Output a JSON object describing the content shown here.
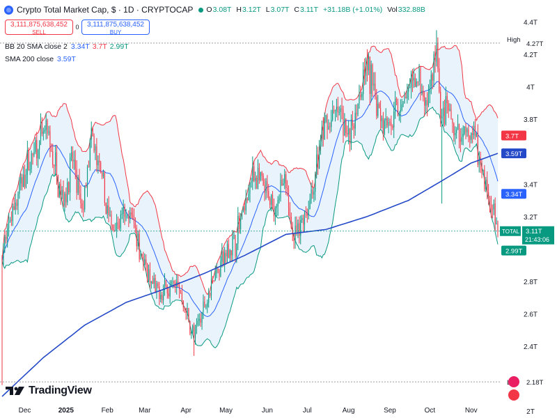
{
  "header": {
    "title": "Crypto Total Market Cap, $ · 1D · CRYPTOCAP",
    "ohlc": [
      {
        "key": "O",
        "value": "3.08T"
      },
      {
        "key": "H",
        "value": "3.12T"
      },
      {
        "key": "L",
        "value": "3.07T"
      },
      {
        "key": "C",
        "value": "3.11T"
      }
    ],
    "change": "+31.18B (+1.01%)",
    "volume_label": "Vol",
    "volume": "332.88B"
  },
  "trade": {
    "sell_price": "3,111,875,638,452",
    "sell_label": "SELL",
    "spread": "0",
    "buy_price": "3,111,875,638,452",
    "buy_label": "BUY"
  },
  "indicators": {
    "bb_name": "BB 20 SMA close 2",
    "bb_basis": "3.34T",
    "bb_upper": "3.7T",
    "bb_lower": "2.99T",
    "sma_name": "SMA 200 close",
    "sma_value": "3.59T"
  },
  "brand": {
    "name": "TradingView"
  },
  "colors": {
    "up": "#089981",
    "down": "#f23645",
    "bb_band": "#f23645",
    "bb_lower": "#089981",
    "bb_basis": "#2962ff",
    "bb_fill": "#e3f0fb",
    "sma": "#2449c8",
    "accent": "#2962ff"
  },
  "chart_data": {
    "type": "candlestick",
    "title": "Crypto Total Market Cap, $ · 1D · CRYPTOCAP",
    "y_unit": "T",
    "ylim": [
      2.0,
      4.45
    ],
    "y_ticks": [
      {
        "value": 4.4,
        "label": "4.4T"
      },
      {
        "value": 4.2,
        "label": "4.2T"
      },
      {
        "value": 4.0,
        "label": "4T"
      },
      {
        "value": 3.8,
        "label": "3.8T"
      },
      {
        "value": 3.4,
        "label": "3.4T"
      },
      {
        "value": 3.2,
        "label": "3.2T"
      },
      {
        "value": 2.8,
        "label": "2.8T"
      },
      {
        "value": 2.6,
        "label": "2.6T"
      },
      {
        "value": 2.4,
        "label": "2.4T"
      },
      {
        "value": 2.0,
        "label": "2T"
      }
    ],
    "x_start": "2024-11-14",
    "x_end": "2025-11-21",
    "x_ticks": [
      {
        "date": "2024-12-01",
        "label": "Dec",
        "bold": false
      },
      {
        "date": "2025-01-01",
        "label": "2025",
        "bold": true
      },
      {
        "date": "2025-02-01",
        "label": "Feb",
        "bold": false
      },
      {
        "date": "2025-03-01",
        "label": "Mar",
        "bold": false
      },
      {
        "date": "2025-04-01",
        "label": "Apr",
        "bold": false
      },
      {
        "date": "2025-05-01",
        "label": "May",
        "bold": false
      },
      {
        "date": "2025-06-01",
        "label": "Jun",
        "bold": false
      },
      {
        "date": "2025-07-01",
        "label": "Jul",
        "bold": false
      },
      {
        "date": "2025-08-01",
        "label": "Aug",
        "bold": false
      },
      {
        "date": "2025-09-01",
        "label": "Sep",
        "bold": false
      },
      {
        "date": "2025-10-01",
        "label": "Oct",
        "bold": false
      },
      {
        "date": "2025-11-01",
        "label": "Nov",
        "bold": false
      }
    ],
    "close_anchors": [
      [
        "2024-11-14",
        2.95
      ],
      [
        "2024-11-22",
        3.25
      ],
      [
        "2024-12-05",
        3.55
      ],
      [
        "2024-12-17",
        3.72
      ],
      [
        "2024-12-30",
        3.3
      ],
      [
        "2025-01-06",
        3.55
      ],
      [
        "2025-01-13",
        3.22
      ],
      [
        "2025-01-20",
        3.68
      ],
      [
        "2025-01-27",
        3.45
      ],
      [
        "2025-02-03",
        3.15
      ],
      [
        "2025-02-20",
        3.2
      ],
      [
        "2025-03-03",
        2.82
      ],
      [
        "2025-03-10",
        2.72
      ],
      [
        "2025-03-25",
        2.8
      ],
      [
        "2025-04-07",
        2.45
      ],
      [
        "2025-04-22",
        2.85
      ],
      [
        "2025-05-08",
        3.05
      ],
      [
        "2025-05-22",
        3.48
      ],
      [
        "2025-06-05",
        3.25
      ],
      [
        "2025-06-13",
        3.4
      ],
      [
        "2025-06-22",
        3.08
      ],
      [
        "2025-07-03",
        3.3
      ],
      [
        "2025-07-14",
        3.75
      ],
      [
        "2025-07-25",
        3.85
      ],
      [
        "2025-08-02",
        3.7
      ],
      [
        "2025-08-14",
        4.12
      ],
      [
        "2025-08-25",
        3.85
      ],
      [
        "2025-09-01",
        3.78
      ],
      [
        "2025-09-12",
        3.92
      ],
      [
        "2025-09-22",
        4.05
      ],
      [
        "2025-09-28",
        3.85
      ],
      [
        "2025-10-06",
        4.22
      ],
      [
        "2025-10-10",
        3.75
      ],
      [
        "2025-10-14",
        3.85
      ],
      [
        "2025-10-22",
        3.68
      ],
      [
        "2025-11-03",
        3.7
      ],
      [
        "2025-11-12",
        3.4
      ],
      [
        "2025-11-21",
        3.11
      ]
    ],
    "high": {
      "value": 4.27,
      "label": "4.27T",
      "tag": "High"
    },
    "low": {
      "value": 2.18,
      "label": "2.18T",
      "tag": "Low"
    },
    "last": {
      "value": 3.11,
      "label": "3.11T",
      "symbol": "TOTAL",
      "countdown": "21:43:06"
    },
    "series": [
      {
        "name": "BB upper",
        "last_label": "3.7T",
        "last_value": 3.7
      },
      {
        "name": "SMA 200",
        "last_label": "3.59T",
        "last_value": 3.59
      },
      {
        "name": "BB basis",
        "last_label": "3.34T",
        "last_value": 3.34
      },
      {
        "name": "BB lower",
        "last_label": "2.99T",
        "last_value": 2.99
      }
    ],
    "sma200_anchors": [
      [
        "2024-11-14",
        2.09
      ],
      [
        "2024-12-15",
        2.33
      ],
      [
        "2025-01-15",
        2.53
      ],
      [
        "2025-02-15",
        2.67
      ],
      [
        "2025-03-15",
        2.75
      ],
      [
        "2025-04-15",
        2.85
      ],
      [
        "2025-05-15",
        2.96
      ],
      [
        "2025-06-15",
        3.09
      ],
      [
        "2025-07-15",
        3.12
      ],
      [
        "2025-08-15",
        3.2
      ],
      [
        "2025-09-15",
        3.3
      ],
      [
        "2025-10-10",
        3.42
      ],
      [
        "2025-11-01",
        3.53
      ],
      [
        "2025-11-21",
        3.59
      ]
    ]
  }
}
